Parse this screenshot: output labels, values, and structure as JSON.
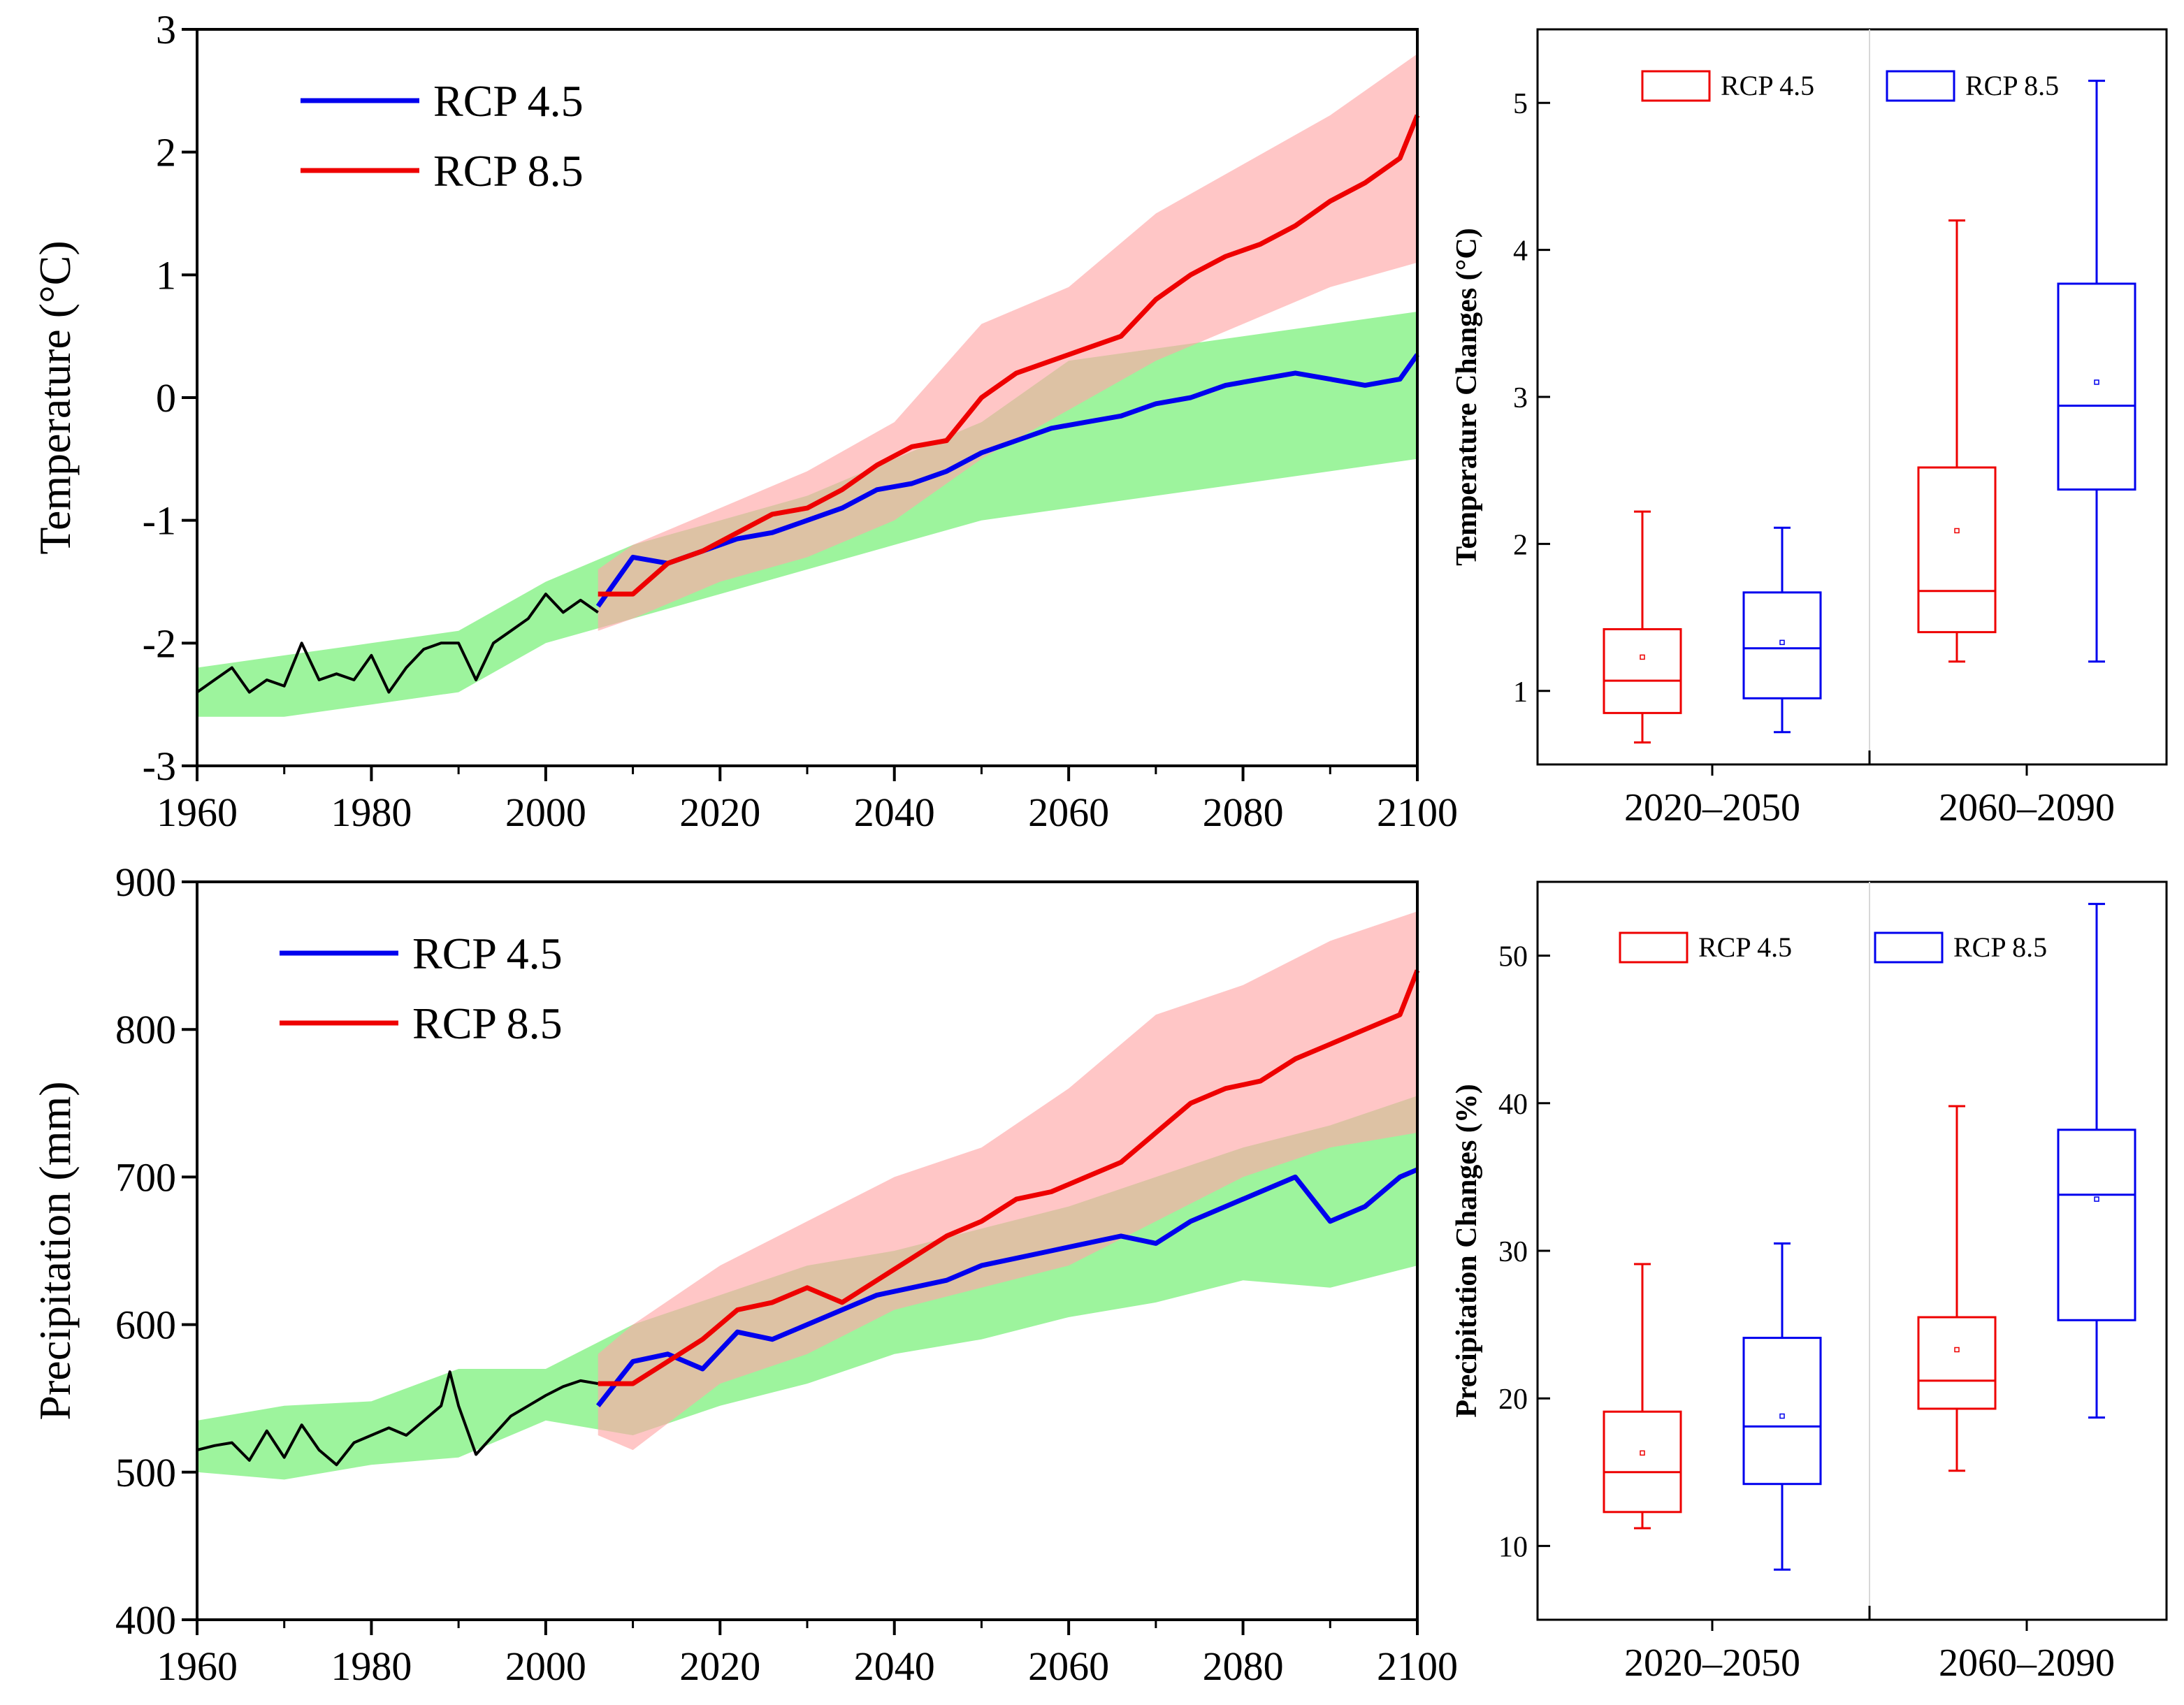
{
  "chart_data": [
    {
      "id": "temp_ts",
      "type": "line",
      "ylabel": "Temperature (°C)",
      "xlim": [
        1960,
        2100
      ],
      "ylim": [
        -3,
        3
      ],
      "xticks": [
        1960,
        1980,
        2000,
        2020,
        2040,
        2060,
        2080,
        2100
      ],
      "yticks": [
        -3,
        -2,
        -1,
        0,
        1,
        2,
        3
      ],
      "legend": {
        "position": "top-left",
        "entries": [
          {
            "label": "RCP 4.5",
            "color": "#0000ee"
          },
          {
            "label": "RCP 8.5",
            "color": "#ee0000"
          }
        ]
      },
      "series": [
        {
          "name": "Historical",
          "color": "#000000",
          "x": [
            1960,
            1962,
            1964,
            1966,
            1968,
            1970,
            1972,
            1974,
            1976,
            1978,
            1980,
            1982,
            1984,
            1986,
            1988,
            1990,
            1992,
            1994,
            1996,
            1998,
            2000,
            2002,
            2004,
            2006
          ],
          "y": [
            -2.4,
            -2.3,
            -2.2,
            -2.4,
            -2.3,
            -2.35,
            -2.0,
            -2.3,
            -2.25,
            -2.3,
            -2.1,
            -2.4,
            -2.2,
            -2.05,
            -2.0,
            -2.0,
            -2.3,
            -2.0,
            -1.9,
            -1.8,
            -1.6,
            -1.75,
            -1.65,
            -1.75
          ]
        },
        {
          "name": "RCP 4.5",
          "color": "#0000ee",
          "x": [
            2006,
            2010,
            2014,
            2018,
            2022,
            2026,
            2030,
            2034,
            2038,
            2042,
            2046,
            2050,
            2054,
            2058,
            2062,
            2066,
            2070,
            2074,
            2078,
            2082,
            2086,
            2090,
            2094,
            2098,
            2100
          ],
          "y": [
            -1.7,
            -1.3,
            -1.35,
            -1.25,
            -1.15,
            -1.1,
            -1.0,
            -0.9,
            -0.75,
            -0.7,
            -0.6,
            -0.45,
            -0.35,
            -0.25,
            -0.2,
            -0.15,
            -0.05,
            0.0,
            0.1,
            0.15,
            0.2,
            0.15,
            0.1,
            0.15,
            0.35
          ]
        },
        {
          "name": "RCP 8.5",
          "color": "#ee0000",
          "x": [
            2006,
            2010,
            2014,
            2018,
            2022,
            2026,
            2030,
            2034,
            2038,
            2042,
            2046,
            2050,
            2054,
            2058,
            2062,
            2066,
            2070,
            2074,
            2078,
            2082,
            2086,
            2090,
            2094,
            2098,
            2100
          ],
          "y": [
            -1.6,
            -1.6,
            -1.35,
            -1.25,
            -1.1,
            -0.95,
            -0.9,
            -0.75,
            -0.55,
            -0.4,
            -0.35,
            0.0,
            0.2,
            0.3,
            0.4,
            0.5,
            0.8,
            1.0,
            1.15,
            1.25,
            1.4,
            1.6,
            1.75,
            1.95,
            2.3
          ]
        }
      ],
      "bands": [
        {
          "name": "RCP 4.5 range",
          "color": "#7cf07c",
          "x": [
            1960,
            1970,
            1980,
            1990,
            2000,
            2010,
            2020,
            2030,
            2040,
            2050,
            2060,
            2070,
            2080,
            2090,
            2100
          ],
          "lower": [
            -2.6,
            -2.6,
            -2.5,
            -2.4,
            -2.0,
            -1.8,
            -1.6,
            -1.4,
            -1.2,
            -1.0,
            -0.9,
            -0.8,
            -0.7,
            -0.6,
            -0.5
          ],
          "upper": [
            -2.2,
            -2.1,
            -2.0,
            -1.9,
            -1.5,
            -1.2,
            -1.0,
            -0.8,
            -0.5,
            -0.2,
            0.3,
            0.4,
            0.5,
            0.6,
            0.7
          ]
        },
        {
          "name": "RCP 8.5 range",
          "color": "#ffa8a8",
          "x": [
            2006,
            2010,
            2020,
            2030,
            2040,
            2050,
            2060,
            2070,
            2080,
            2090,
            2100
          ],
          "lower": [
            -1.9,
            -1.8,
            -1.5,
            -1.3,
            -1.0,
            -0.5,
            -0.1,
            0.3,
            0.6,
            0.9,
            1.1
          ],
          "upper": [
            -1.4,
            -1.2,
            -0.9,
            -0.6,
            -0.2,
            0.6,
            0.9,
            1.5,
            1.9,
            2.3,
            2.8
          ]
        }
      ]
    },
    {
      "id": "temp_box",
      "type": "box",
      "ylabel": "Temperature Changes (°C)",
      "ylim": [
        0.5,
        5.5
      ],
      "yticks": [
        1,
        2,
        3,
        4,
        5
      ],
      "categories": [
        "2020–2050",
        "2060–2090"
      ],
      "legend": {
        "position": "top",
        "entries": [
          {
            "label": "RCP 4.5",
            "color": "#ee0000"
          },
          {
            "label": "RCP 8.5",
            "color": "#0000ee"
          }
        ]
      },
      "series": [
        {
          "name": "RCP 4.5",
          "color": "#ee0000",
          "boxes": [
            {
              "min": 0.65,
              "q1": 0.85,
              "median": 1.07,
              "q3": 1.42,
              "max": 2.22,
              "mean": 1.23
            },
            {
              "min": 1.2,
              "q1": 1.4,
              "median": 1.68,
              "q3": 2.52,
              "max": 4.2,
              "mean": 2.09
            }
          ]
        },
        {
          "name": "RCP 8.5",
          "color": "#0000ee",
          "boxes": [
            {
              "min": 0.72,
              "q1": 0.95,
              "median": 1.29,
              "q3": 1.67,
              "max": 2.11,
              "mean": 1.33
            },
            {
              "min": 1.2,
              "q1": 2.37,
              "median": 2.94,
              "q3": 3.77,
              "max": 5.15,
              "mean": 3.1
            }
          ]
        }
      ]
    },
    {
      "id": "precip_ts",
      "type": "line",
      "ylabel": "Precipitation (mm)",
      "xlim": [
        1960,
        2100
      ],
      "ylim": [
        400,
        900
      ],
      "xticks": [
        1960,
        1980,
        2000,
        2020,
        2040,
        2060,
        2080,
        2100
      ],
      "yticks": [
        400,
        500,
        600,
        700,
        800,
        900
      ],
      "legend": {
        "position": "top-left",
        "entries": [
          {
            "label": "RCP 4.5",
            "color": "#0000ee"
          },
          {
            "label": "RCP 8.5",
            "color": "#ee0000"
          }
        ]
      },
      "series": [
        {
          "name": "Historical",
          "color": "#000000",
          "x": [
            1960,
            1962,
            1964,
            1966,
            1968,
            1970,
            1972,
            1974,
            1976,
            1978,
            1980,
            1982,
            1984,
            1986,
            1988,
            1989,
            1990,
            1992,
            1994,
            1996,
            1998,
            2000,
            2002,
            2004,
            2006
          ],
          "y": [
            515,
            518,
            520,
            508,
            528,
            510,
            532,
            515,
            505,
            520,
            525,
            530,
            525,
            535,
            545,
            568,
            545,
            512,
            525,
            538,
            545,
            552,
            558,
            562,
            560
          ]
        },
        {
          "name": "RCP 4.5",
          "color": "#0000ee",
          "x": [
            2006,
            2010,
            2014,
            2018,
            2022,
            2026,
            2030,
            2034,
            2038,
            2042,
            2046,
            2050,
            2054,
            2058,
            2062,
            2066,
            2070,
            2074,
            2078,
            2082,
            2086,
            2090,
            2094,
            2098,
            2100
          ],
          "y": [
            545,
            575,
            580,
            570,
            595,
            590,
            600,
            610,
            620,
            625,
            630,
            640,
            645,
            650,
            655,
            660,
            655,
            670,
            680,
            690,
            700,
            670,
            680,
            700,
            705
          ]
        },
        {
          "name": "RCP 8.5",
          "color": "#ee0000",
          "x": [
            2006,
            2010,
            2014,
            2018,
            2022,
            2026,
            2030,
            2034,
            2038,
            2042,
            2046,
            2050,
            2054,
            2058,
            2062,
            2066,
            2070,
            2074,
            2078,
            2082,
            2086,
            2090,
            2094,
            2098,
            2100
          ],
          "y": [
            560,
            560,
            575,
            590,
            610,
            615,
            625,
            615,
            630,
            645,
            660,
            670,
            685,
            690,
            700,
            710,
            730,
            750,
            760,
            765,
            780,
            790,
            800,
            810,
            840
          ]
        }
      ],
      "bands": [
        {
          "name": "RCP 4.5 range",
          "color": "#7cf07c",
          "x": [
            1960,
            1970,
            1980,
            1990,
            2000,
            2010,
            2020,
            2030,
            2040,
            2050,
            2060,
            2070,
            2080,
            2090,
            2100
          ],
          "lower": [
            500,
            495,
            505,
            510,
            535,
            525,
            545,
            560,
            580,
            590,
            605,
            615,
            630,
            625,
            640
          ],
          "upper": [
            535,
            545,
            548,
            570,
            570,
            600,
            620,
            640,
            650,
            665,
            680,
            700,
            720,
            735,
            755
          ]
        },
        {
          "name": "RCP 8.5 range",
          "color": "#ffa8a8",
          "x": [
            2006,
            2010,
            2020,
            2030,
            2040,
            2050,
            2060,
            2070,
            2080,
            2090,
            2100
          ],
          "lower": [
            525,
            515,
            560,
            580,
            610,
            625,
            640,
            670,
            700,
            720,
            730
          ],
          "upper": [
            580,
            600,
            640,
            670,
            700,
            720,
            760,
            810,
            830,
            860,
            880
          ]
        }
      ]
    },
    {
      "id": "precip_box",
      "type": "box",
      "ylabel": "Precipitation Changes (%)",
      "ylim": [
        5,
        55
      ],
      "yticks": [
        10,
        20,
        30,
        40,
        50
      ],
      "categories": [
        "2020–2050",
        "2060–2090"
      ],
      "legend": {
        "position": "top",
        "entries": [
          {
            "label": "RCP 4.5",
            "color": "#ee0000"
          },
          {
            "label": "RCP 8.5",
            "color": "#0000ee"
          }
        ]
      },
      "series": [
        {
          "name": "RCP 4.5",
          "color": "#ee0000",
          "boxes": [
            {
              "min": 11.2,
              "q1": 12.3,
              "median": 15.0,
              "q3": 19.1,
              "max": 29.1,
              "mean": 16.3
            },
            {
              "min": 15.1,
              "q1": 19.3,
              "median": 21.2,
              "q3": 25.5,
              "max": 39.8,
              "mean": 23.3
            }
          ]
        },
        {
          "name": "RCP 8.5",
          "color": "#0000ee",
          "boxes": [
            {
              "min": 8.4,
              "q1": 14.2,
              "median": 18.1,
              "q3": 24.1,
              "max": 30.5,
              "mean": 18.8
            },
            {
              "min": 18.7,
              "q1": 25.3,
              "median": 33.8,
              "q3": 38.2,
              "max": 53.5,
              "mean": 33.5
            }
          ]
        }
      ]
    }
  ]
}
